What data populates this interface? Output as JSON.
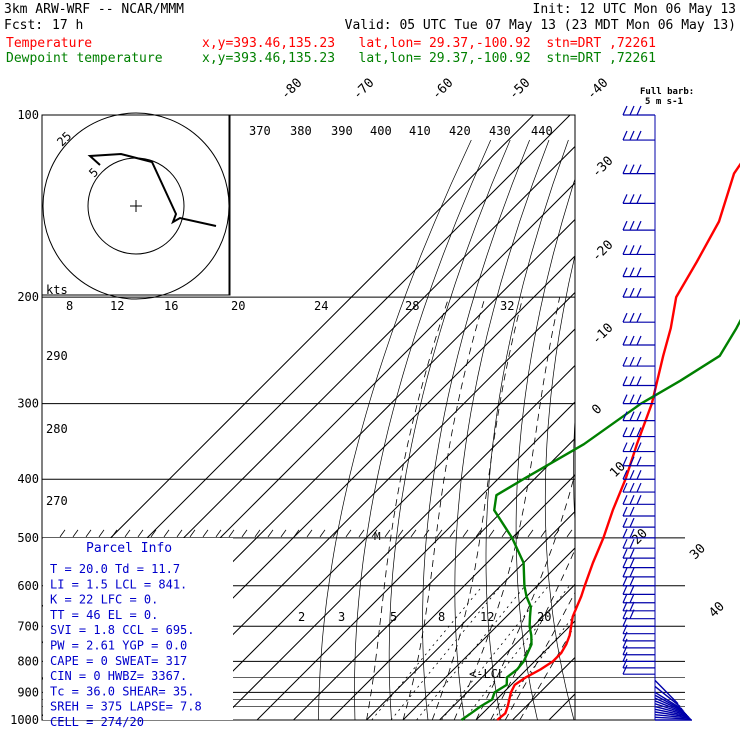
{
  "header": {
    "model": "3km ARW-WRF -- NCAR/MMM",
    "fcst_label": "Fcst:",
    "fcst_value": "17 h",
    "init": "Init: 12 UTC Mon 06 May 13",
    "valid": "Valid: 05 UTC Tue 07 May 13 (23 MDT Mon 06 May 13)"
  },
  "legend": [
    {
      "name": "Temperature",
      "info": "x,y=393.46,135.23   lat,lon= 29.37,-100.92  stn=DRT ,72261",
      "color": "#ff0000"
    },
    {
      "name": "Dewpoint temperature",
      "info": "x,y=393.46,135.23   lat,lon= 29.37,-100.92  stn=DRT ,72261",
      "color": "#008000"
    }
  ],
  "barb_label": {
    "line1": "Full barb:",
    "line2": "5 m s-1"
  },
  "parcel": {
    "title": "Parcel Info",
    "rows": [
      "T  =   20.0 Td =  11.7",
      "LI =    1.5 LCL =  841.",
      "K  =     22 LFC =    0.",
      "TT =     46 EL  =    0.",
      "SVI =   1.8 CCL =  695.",
      "PW =   2.61 YGP =   0.0",
      "CAPE =    0 SWEAT=  317",
      "CIN  =    0 HWBZ= 3367.",
      "Tc  =  36.0 SHEAR=  35.",
      "SREH =  375 LAPSE=  7.8",
      "CELL = 274/20"
    ]
  },
  "annotations": {
    "lcl": "<-LCL",
    "m_marker": "M"
  },
  "chart_data": {
    "type": "line",
    "subtype": "skew-T log-p sounding",
    "pressure_axis": {
      "ticks": [
        100,
        200,
        300,
        400,
        500,
        600,
        700,
        800,
        900,
        1000
      ],
      "log_scale": true,
      "ylim": [
        1000,
        100
      ]
    },
    "isotherm_labels": [
      "-80",
      "-70",
      "-60",
      "-50",
      "-40",
      "-30",
      "-20",
      "-10",
      "0",
      "10",
      "20",
      "30",
      "40"
    ],
    "theta_labels": [
      "370",
      "380",
      "390",
      "400",
      "410",
      "420",
      "430",
      "440"
    ],
    "theta_side_labels": [
      "290",
      "280",
      "270"
    ],
    "mixing_ratio_labels": [
      "2",
      "3",
      "5",
      "8",
      "12",
      "20"
    ],
    "hodograph": {
      "rings_kts": [
        "5",
        "25"
      ],
      "speed_axis_label": "kts",
      "speed_axis_ticks": [
        "8",
        "12",
        "16",
        "20",
        "24",
        "28",
        "32"
      ]
    },
    "series": [
      {
        "name": "Temperature",
        "color": "#ff0000",
        "points": [
          [
            1000,
            25.8
          ],
          [
            975,
            26.2
          ],
          [
            950,
            25.0
          ],
          [
            925,
            23.5
          ],
          [
            900,
            22.0
          ],
          [
            875,
            21.0
          ],
          [
            850,
            22.0
          ],
          [
            825,
            23.8
          ],
          [
            800,
            25.0
          ],
          [
            775,
            25.0
          ],
          [
            750,
            24.0
          ],
          [
            725,
            22.5
          ],
          [
            700,
            20.4
          ],
          [
            675,
            18.2
          ],
          [
            650,
            16.6
          ],
          [
            625,
            15.0
          ],
          [
            600,
            13.0
          ],
          [
            550,
            9.0
          ],
          [
            500,
            5.0
          ],
          [
            450,
            0.0
          ],
          [
            400,
            -5.0
          ],
          [
            350,
            -11.5
          ],
          [
            300,
            -18.5
          ],
          [
            250,
            -28.5
          ],
          [
            225,
            -34.0
          ],
          [
            200,
            -41.0
          ],
          [
            175,
            -45.0
          ],
          [
            150,
            -50.0
          ],
          [
            125,
            -59.0
          ],
          [
            110,
            -62.0
          ],
          [
            100,
            -64.0
          ]
        ]
      },
      {
        "name": "Dewpoint temperature",
        "color": "#008000",
        "points": [
          [
            1000,
            16.0
          ],
          [
            975,
            16.8
          ],
          [
            950,
            17.5
          ],
          [
            925,
            18.8
          ],
          [
            900,
            17.5
          ],
          [
            875,
            18.8
          ],
          [
            850,
            16.8
          ],
          [
            825,
            17.4
          ],
          [
            800,
            17.0
          ],
          [
            775,
            15.8
          ],
          [
            750,
            14.5
          ],
          [
            725,
            12.0
          ],
          [
            700,
            9.0
          ],
          [
            675,
            6.5
          ],
          [
            650,
            4.0
          ],
          [
            625,
            0.0
          ],
          [
            600,
            -3.5
          ],
          [
            550,
            -10.0
          ],
          [
            500,
            -20.0
          ],
          [
            450,
            -32.5
          ],
          [
            425,
            -36.0
          ],
          [
            400,
            -33.0
          ],
          [
            350,
            -26.0
          ],
          [
            300,
            -21.5
          ],
          [
            275,
            -17.0
          ],
          [
            250,
            -13.0
          ],
          [
            225,
            -16.0
          ],
          [
            200,
            -20.0
          ],
          [
            175,
            -27.0
          ],
          [
            150,
            -35.0
          ],
          [
            125,
            -44.0
          ],
          [
            110,
            -47.0
          ],
          [
            100,
            -49.0
          ]
        ]
      }
    ],
    "wind_barbs_pressures": [
      1000,
      990,
      980,
      970,
      960,
      950,
      940,
      930,
      920,
      910,
      900,
      880,
      860,
      840,
      820,
      800,
      780,
      760,
      740,
      720,
      700,
      680,
      660,
      640,
      620,
      600,
      580,
      560,
      540,
      520,
      500,
      480,
      460,
      440,
      420,
      400,
      380,
      360,
      340,
      320,
      300,
      280,
      260,
      240,
      220,
      200,
      185,
      170,
      155,
      140,
      125,
      110,
      100
    ]
  }
}
